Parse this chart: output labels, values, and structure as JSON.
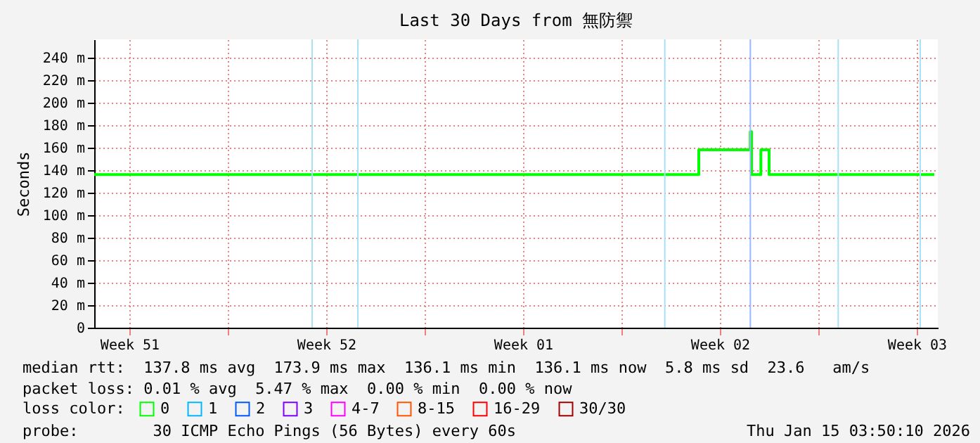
{
  "chart_data": {
    "type": "step",
    "title": "Last 30 Days from 無防禦",
    "ylabel": "Seconds",
    "legend_title": "loss color:",
    "x": [
      "2025-12-17T06:00",
      "2026-01-07T18:00",
      "2026-01-09T14:00",
      "2026-01-09T15:00",
      "2026-01-09T23:00",
      "2026-01-10T06:00",
      "2026-01-16T03:00"
    ],
    "series": [
      {
        "name": "0",
        "color": "#00ff00",
        "values": [
          136,
          158,
          174,
          136,
          158,
          136,
          136
        ]
      },
      {
        "name": "1",
        "color": "#00b8ff",
        "values": [
          null,
          null,
          null,
          null,
          null,
          null,
          null
        ]
      },
      {
        "name": "2",
        "color": "#0059ff",
        "values": [
          null,
          null,
          null,
          null,
          null,
          null,
          null
        ]
      },
      {
        "name": "3",
        "color": "#7e00ff",
        "values": [
          null,
          null,
          null,
          null,
          null,
          null,
          null
        ]
      },
      {
        "name": "4-7",
        "color": "#ff00ff",
        "values": [
          null,
          null,
          null,
          null,
          null,
          null,
          null
        ]
      },
      {
        "name": "8-15",
        "color": "#ff5500",
        "values": [
          null,
          null,
          null,
          null,
          null,
          null,
          null
        ]
      },
      {
        "name": "16-29",
        "color": "#ff0000",
        "values": [
          null,
          null,
          null,
          null,
          null,
          null,
          null
        ]
      },
      {
        "name": "30/30",
        "color": "#a10000",
        "values": [
          null,
          null,
          null,
          null,
          null,
          null,
          null
        ]
      }
    ],
    "xlim": [
      "2025-12-17T06:00",
      "2026-01-16T06:00"
    ],
    "xticks": [
      {
        "value": "2025-12-18T12:00",
        "label": "Week 51"
      },
      {
        "value": "2025-12-22T00:00",
        "label": null
      },
      {
        "value": "2025-12-25T12:00",
        "label": "Week 52"
      },
      {
        "value": "2025-12-29T00:00",
        "label": null
      },
      {
        "value": "2026-01-01T12:00",
        "label": "Week 01"
      },
      {
        "value": "2026-01-05T00:00",
        "label": null
      },
      {
        "value": "2026-01-08T12:00",
        "label": "Week 02"
      },
      {
        "value": "2026-01-12T00:00",
        "label": null
      },
      {
        "value": "2026-01-15T12:00",
        "label": "Week 03"
      }
    ],
    "ylim": [
      0,
      256
    ],
    "yticks": [
      0,
      {
        "value": 20,
        "label": "20 m"
      },
      {
        "value": 40,
        "label": "40 m"
      },
      {
        "value": 60,
        "label": "60 m"
      },
      {
        "value": 80,
        "label": "80 m"
      },
      {
        "value": 100,
        "label": "100 m"
      },
      {
        "value": 120,
        "label": "120 m"
      },
      {
        "value": 140,
        "label": "140 m"
      },
      {
        "value": 160,
        "label": "160 m"
      },
      {
        "value": 180,
        "label": "180 m"
      },
      {
        "value": 200,
        "label": "200 m"
      },
      {
        "value": 220,
        "label": "220 m"
      },
      {
        "value": 240,
        "label": "240 m"
      }
    ],
    "grid": true,
    "legend": "bottom",
    "ref_lines": [
      {
        "axis": "x",
        "value": "2025-12-25T00:00",
        "color": "#a8e0f5"
      },
      {
        "axis": "x",
        "value": "2025-12-26T15:00",
        "color": "#a8e0f5"
      },
      {
        "axis": "x",
        "value": "2026-01-06T13:00",
        "color": "#a8e0f5"
      },
      {
        "axis": "x",
        "value": "2026-01-09T14:00",
        "color": "#99b8ff"
      },
      {
        "axis": "x",
        "value": "2026-01-12T17:00",
        "color": "#a8e0f5"
      },
      {
        "axis": "x",
        "value": "2026-01-15T15:00",
        "color": "#a8e0f5"
      }
    ],
    "annotations": [
      "median rtt:  137.8 ms avg  173.9 ms max  136.1 ms min  136.1 ms now  5.8 ms sd  23.6   am/s",
      "packet loss: 0.01 % avg  5.47 % max  0.00 % min  0.00 % now",
      "probe:        30 ICMP Echo Pings (56 Bytes) every 60s",
      "Thu Jan 15 03:50:10 2026"
    ]
  }
}
